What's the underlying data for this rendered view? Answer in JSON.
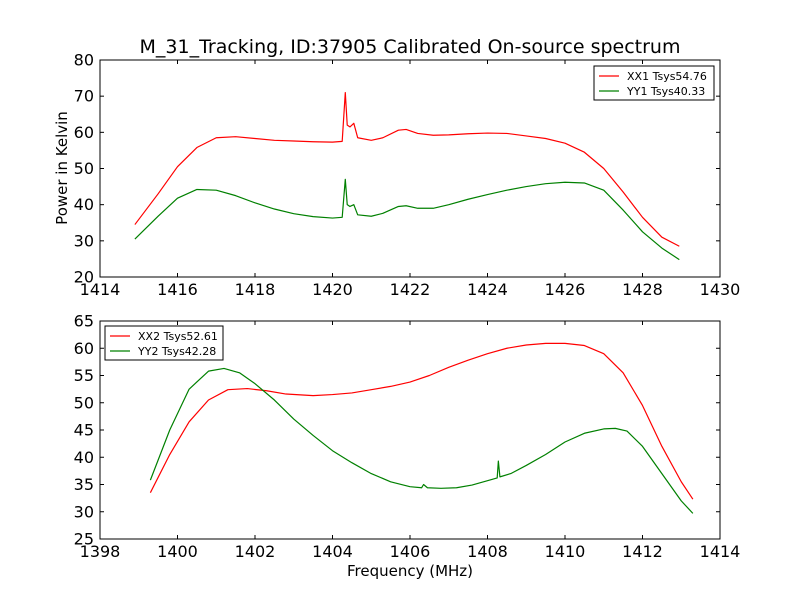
{
  "figure": {
    "title": "M_31_Tracking, ID:37905 Calibrated On-source spectrum",
    "xlabel": "Frequency (MHz)",
    "ylabel": "Power in Kelvin"
  },
  "colors": {
    "red": "#ff0000",
    "green": "#008000"
  },
  "chart_data": [
    {
      "type": "line",
      "xlim": [
        1414,
        1430
      ],
      "ylim": [
        20,
        80
      ],
      "xticks": [
        1414,
        1416,
        1418,
        1420,
        1422,
        1424,
        1426,
        1428,
        1430
      ],
      "yticks": [
        20,
        30,
        40,
        50,
        60,
        70,
        80
      ],
      "legend": "top-right",
      "series": [
        {
          "name": "XX1 Tsys54.76",
          "color": "#ff0000",
          "x": [
            1414.9,
            1415.5,
            1416.0,
            1416.5,
            1417.0,
            1417.5,
            1418.0,
            1418.5,
            1419.0,
            1419.5,
            1420.0,
            1420.25,
            1420.33,
            1420.38,
            1420.45,
            1420.55,
            1420.65,
            1421.0,
            1421.3,
            1421.7,
            1421.9,
            1422.2,
            1422.6,
            1423.0,
            1423.5,
            1424.0,
            1424.5,
            1425.0,
            1425.5,
            1426.0,
            1426.5,
            1427.0,
            1427.5,
            1428.0,
            1428.5,
            1428.95
          ],
          "y": [
            34.5,
            43.0,
            50.5,
            55.8,
            58.5,
            58.8,
            58.3,
            57.8,
            57.6,
            57.4,
            57.3,
            57.5,
            71.0,
            62.0,
            61.5,
            62.5,
            58.5,
            57.8,
            58.5,
            60.6,
            60.8,
            59.7,
            59.2,
            59.3,
            59.6,
            59.8,
            59.7,
            59.0,
            58.3,
            57.0,
            54.5,
            50.0,
            43.5,
            36.5,
            31.0,
            28.5
          ]
        },
        {
          "name": "YY1 Tsys40.33",
          "color": "#008000",
          "x": [
            1414.9,
            1415.5,
            1416.0,
            1416.5,
            1417.0,
            1417.5,
            1418.0,
            1418.5,
            1419.0,
            1419.5,
            1420.0,
            1420.25,
            1420.33,
            1420.38,
            1420.45,
            1420.55,
            1420.65,
            1421.0,
            1421.3,
            1421.7,
            1421.9,
            1422.2,
            1422.6,
            1423.0,
            1423.5,
            1424.0,
            1424.5,
            1425.0,
            1425.5,
            1426.0,
            1426.5,
            1427.0,
            1427.5,
            1428.0,
            1428.5,
            1428.95
          ],
          "y": [
            30.5,
            36.8,
            41.8,
            44.2,
            44.0,
            42.5,
            40.5,
            38.8,
            37.5,
            36.7,
            36.3,
            36.5,
            47.0,
            40.0,
            39.5,
            40.0,
            37.2,
            36.8,
            37.6,
            39.5,
            39.7,
            39.0,
            39.0,
            40.0,
            41.5,
            42.8,
            44.0,
            45.0,
            45.8,
            46.2,
            46.0,
            44.0,
            38.5,
            32.5,
            28.0,
            24.8
          ]
        }
      ]
    },
    {
      "type": "line",
      "xlim": [
        1398,
        1414
      ],
      "ylim": [
        25,
        65
      ],
      "xticks": [
        1398,
        1400,
        1402,
        1404,
        1406,
        1408,
        1410,
        1412,
        1414
      ],
      "yticks": [
        25,
        30,
        35,
        40,
        45,
        50,
        55,
        60,
        65
      ],
      "legend": "top-left",
      "series": [
        {
          "name": "XX2 Tsys52.61",
          "color": "#ff0000",
          "x": [
            1399.3,
            1399.8,
            1400.3,
            1400.8,
            1401.3,
            1401.8,
            1402.3,
            1402.8,
            1403.5,
            1404.0,
            1404.5,
            1405.0,
            1405.5,
            1406.0,
            1406.5,
            1407.0,
            1407.5,
            1408.0,
            1408.5,
            1409.0,
            1409.5,
            1410.0,
            1410.5,
            1411.0,
            1411.5,
            1412.0,
            1412.5,
            1413.0,
            1413.3
          ],
          "y": [
            33.5,
            40.5,
            46.5,
            50.5,
            52.4,
            52.6,
            52.2,
            51.6,
            51.3,
            51.5,
            51.8,
            52.4,
            53.0,
            53.8,
            55.0,
            56.5,
            57.8,
            59.0,
            60.0,
            60.6,
            60.9,
            60.9,
            60.5,
            59.0,
            55.5,
            49.5,
            42.0,
            35.5,
            32.3
          ]
        },
        {
          "name": "YY2 Tsys42.28",
          "color": "#008000",
          "x": [
            1399.3,
            1399.8,
            1400.3,
            1400.8,
            1401.2,
            1401.6,
            1402.0,
            1402.5,
            1403.0,
            1403.5,
            1404.0,
            1404.5,
            1405.0,
            1405.5,
            1406.0,
            1406.3,
            1406.35,
            1406.45,
            1406.8,
            1407.2,
            1407.6,
            1408.0,
            1408.25,
            1408.28,
            1408.32,
            1408.6,
            1409.0,
            1409.5,
            1410.0,
            1410.5,
            1411.0,
            1411.3,
            1411.6,
            1412.0,
            1412.5,
            1413.0,
            1413.3
          ],
          "y": [
            35.8,
            45.0,
            52.5,
            55.8,
            56.3,
            55.5,
            53.5,
            50.5,
            47.0,
            44.0,
            41.2,
            39.0,
            37.0,
            35.5,
            34.6,
            34.4,
            35.0,
            34.4,
            34.3,
            34.4,
            34.9,
            35.7,
            36.2,
            39.3,
            36.4,
            37.0,
            38.5,
            40.5,
            42.8,
            44.4,
            45.2,
            45.3,
            44.8,
            42.0,
            37.0,
            32.0,
            29.7
          ]
        }
      ]
    }
  ]
}
